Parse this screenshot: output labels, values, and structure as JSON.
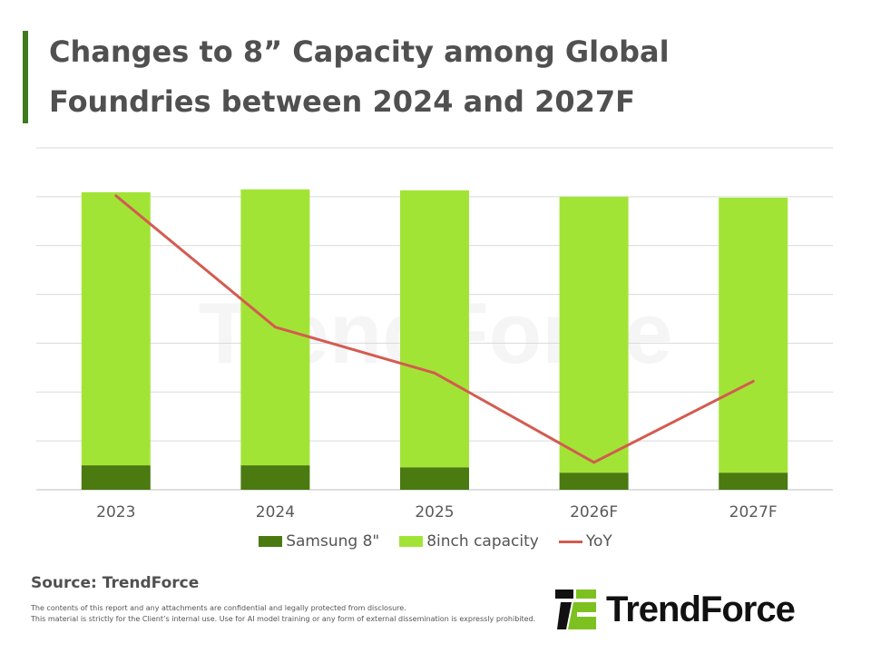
{
  "title": "Changes to 8” Capacity among Global Foundries between 2024 and 2027F",
  "source": "Source: TrendForce",
  "disclaimer": [
    "The contents of this report and any attachments are confidential and legally protected from disclosure.",
    "This material is strictly for the Client’s internal use. Use for AI model training or any form of external dissemination is expressly prohibited."
  ],
  "logo_text": "TrendForce",
  "watermark_text": "TrendForce",
  "colors": {
    "samsung": "#4a7a10",
    "capacity": "#a2e436",
    "yoy": "#d45b50",
    "accent": "#3f7a1f"
  },
  "chart_data": {
    "type": "bar",
    "stacked": true,
    "title": "Changes to 8” Capacity among Global Foundries between 2024 and 2027F",
    "categories": [
      "2023",
      "2024",
      "2025",
      "2026F",
      "2027F"
    ],
    "series": [
      {
        "name": "Samsung 8\"",
        "type": "bar",
        "values": [
          0.5,
          0.5,
          0.46,
          0.35,
          0.35
        ]
      },
      {
        "name": "8inch capacity",
        "type": "bar",
        "values": [
          5.59,
          5.65,
          5.67,
          5.65,
          5.63
        ]
      },
      {
        "name": "YoY",
        "type": "line",
        "values": [
          6.02,
          3.33,
          2.39,
          0.56,
          2.22
        ]
      }
    ],
    "ylim": [
      0,
      7
    ],
    "y_tick_labels_shown": false,
    "grid": true,
    "legend": "bottom"
  }
}
